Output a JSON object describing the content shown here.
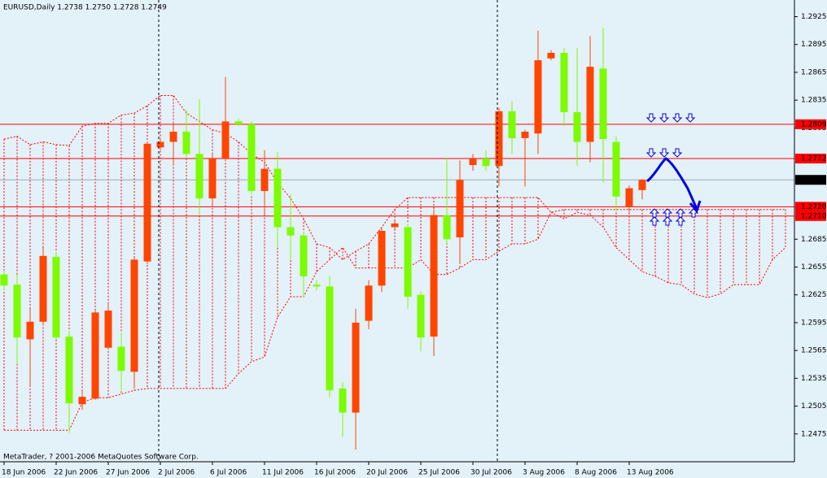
{
  "chart_data": {
    "type": "candlestick",
    "title": "EURUSD,Daily  1.2738 1.2750 1.2728 1.2749",
    "footer": "MetaTrader, ? 2001-2006 MetaQuotes Software Corp.",
    "categories": [
      "18 Jun 2006",
      null,
      null,
      null,
      "22 Jun 2006",
      null,
      null,
      null,
      "27 Jun 2006",
      null,
      null,
      null,
      "2 Jul 2006",
      null,
      null,
      null,
      "6 Jul 2006",
      null,
      null,
      null,
      "11 Jul 2006",
      null,
      null,
      null,
      "16 Jul 2006",
      null,
      null,
      null,
      "20 Jul 2006",
      null,
      null,
      null,
      "25 Jul 2006",
      null,
      null,
      null,
      "30 Jul 2006",
      null,
      null,
      null,
      "3 Aug 2006",
      null,
      null,
      null,
      "8 Aug 2006",
      null,
      null,
      null,
      "13 Aug 2006",
      null,
      null,
      null,
      null,
      null,
      null,
      null,
      null,
      null,
      null,
      null,
      null
    ],
    "open": [
      1.2647,
      1.2636,
      1.2577,
      1.2596,
      1.2666,
      1.258,
      1.2507,
      1.2513,
      1.2568,
      1.2569,
      1.2542,
      1.2661,
      1.2784,
      1.279,
      1.2801,
      1.2777,
      1.2729,
      1.2772,
      1.2812,
      1.2809,
      1.2737,
      1.2761,
      1.2698,
      1.2689,
      1.2636,
      1.2634,
      1.2524,
      1.2498,
      1.2597,
      1.2635,
      1.2698,
      1.2698,
      1.2625,
      1.258,
      1.2711,
      1.2687,
      1.2765,
      1.2772,
      1.2764,
      1.2823,
      1.2794,
      1.2799,
      1.288,
      1.2886,
      1.2822,
      1.279,
      1.2869,
      1.279,
      1.272,
      1.2738,
      null,
      null,
      null,
      null,
      null,
      null,
      null,
      null,
      null,
      null,
      null
    ],
    "high": [
      1.265,
      1.2647,
      1.261,
      1.2676,
      1.2671,
      1.2586,
      1.2521,
      1.2608,
      1.2615,
      1.2584,
      1.2665,
      1.279,
      1.2794,
      1.2812,
      1.2825,
      1.2836,
      1.2777,
      1.286,
      1.2815,
      1.2812,
      1.2781,
      1.2779,
      1.2733,
      1.2693,
      1.2641,
      1.2645,
      1.2531,
      1.261,
      1.2641,
      1.2698,
      1.2705,
      1.2702,
      1.2629,
      1.2717,
      1.2772,
      1.277,
      1.2777,
      1.2781,
      1.2827,
      1.2834,
      1.2803,
      1.291,
      1.2889,
      1.2891,
      1.2891,
      1.2904,
      1.2913,
      1.2796,
      1.2743,
      1.275,
      null,
      null,
      null,
      null,
      null,
      null,
      null,
      null,
      null,
      null,
      null
    ],
    "low": [
      1.263,
      1.255,
      1.2527,
      1.2592,
      1.2577,
      1.2476,
      1.2501,
      1.2512,
      1.2566,
      1.2522,
      1.2524,
      1.2658,
      1.2781,
      1.2764,
      1.2772,
      1.2711,
      1.272,
      1.277,
      1.2807,
      1.2733,
      1.2711,
      1.2676,
      1.2663,
      1.2623,
      1.263,
      1.2514,
      1.2472,
      1.2458,
      1.2588,
      1.2628,
      1.2696,
      1.261,
      1.2564,
      1.2559,
      1.268,
      1.2658,
      1.2759,
      1.2759,
      1.2742,
      1.2777,
      1.2742,
      1.2777,
      1.2878,
      1.2807,
      1.2764,
      1.2768,
      1.2746,
      1.2714,
      1.2714,
      1.2728,
      null,
      null,
      null,
      null,
      null,
      null,
      null,
      null,
      null,
      null,
      null
    ],
    "close": [
      1.2635,
      1.2579,
      1.2596,
      1.2667,
      1.2579,
      1.2508,
      1.2515,
      1.2606,
      1.2608,
      1.2543,
      1.2663,
      1.2788,
      1.279,
      1.2801,
      1.2777,
      1.2729,
      1.2772,
      1.2812,
      1.2809,
      1.2737,
      1.2761,
      1.2698,
      1.2689,
      1.2645,
      1.2634,
      1.2522,
      1.2498,
      1.2595,
      1.2635,
      1.2694,
      1.2702,
      1.2623,
      1.2579,
      1.2711,
      1.2685,
      1.2749,
      1.2772,
      1.2764,
      1.2823,
      1.2794,
      1.2801,
      1.2878,
      1.2886,
      1.2822,
      1.279,
      1.2871,
      1.2793,
      1.2731,
      1.274,
      1.2749,
      null,
      null,
      null,
      null,
      null,
      null,
      null,
      null,
      null,
      null,
      null
    ],
    "up_color": "#ff4500",
    "down_color": "#7cfc00",
    "series": [
      {
        "color": "#ff0000",
        "values": [
          1.2793,
          1.2796,
          1.2787,
          1.279,
          1.2787,
          1.2786,
          1.2807,
          1.281,
          1.281,
          1.2819,
          1.2821,
          1.2829,
          1.284,
          1.284,
          1.2821,
          1.2812,
          1.2803,
          1.2799,
          1.279,
          1.2777,
          1.2768,
          1.2746,
          1.2729,
          1.2707,
          1.268,
          1.2676,
          1.2663,
          1.2672,
          1.268,
          1.2698,
          1.2717,
          1.273,
          1.273,
          1.273,
          1.273,
          1.273,
          1.273,
          1.273,
          1.273,
          1.273,
          1.273,
          1.273,
          1.2714,
          1.2717,
          1.2717,
          1.2717,
          1.2717,
          1.2717,
          1.2717,
          1.2717,
          1.2717,
          1.2717,
          1.2717,
          1.2717,
          1.2717,
          1.2717,
          1.2717,
          1.2717,
          1.2717,
          1.2717,
          1.2717
        ]
      },
      {
        "color": "#ff0000",
        "values": [
          1.2479,
          1.2479,
          1.2479,
          1.2479,
          1.2479,
          1.2479,
          1.2509,
          1.2514,
          1.2514,
          1.2518,
          1.2522,
          1.2524,
          1.2524,
          1.2524,
          1.2524,
          1.2524,
          1.2524,
          1.2524,
          1.254,
          1.2553,
          1.2558,
          1.2601,
          1.2623,
          1.2623,
          1.265,
          1.2663,
          1.2676,
          1.2654,
          1.2654,
          1.2654,
          1.2654,
          1.2654,
          1.2663,
          1.2647,
          1.2647,
          1.2654,
          1.2663,
          1.2663,
          1.2672,
          1.268,
          1.268,
          1.2685,
          1.2714,
          1.2707,
          1.2714,
          1.2711,
          1.2698,
          1.2676,
          1.2663,
          1.265,
          1.2645,
          1.2638,
          1.2636,
          1.2626,
          1.2622,
          1.2626,
          1.2636,
          1.2636,
          1.2636,
          1.2663,
          1.2676
        ]
      }
    ],
    "price_lines": [
      {
        "value": 1.2809,
        "color": "#ff0000"
      },
      {
        "value": 1.2772,
        "color": "#ff0000"
      },
      {
        "value": 1.2749,
        "color": "#000000",
        "line_color": "#a0a8b0"
      },
      {
        "value": {
          "value": 1.272,
          "label": "1.2720"
        },
        "color": "#ff0000"
      },
      {
        "value": {
          "value": 1.271,
          "label": "1.2710"
        },
        "color": "#ff0000"
      }
    ],
    "ylim": [
      1.2445,
      1.2943
    ],
    "yticks": [
      1.2925,
      1.2895,
      1.2865,
      1.2835,
      1.2805,
      1.2685,
      1.2655,
      1.2625,
      1.2595,
      1.2565,
      1.2535,
      1.2505,
      1.2475
    ]
  }
}
